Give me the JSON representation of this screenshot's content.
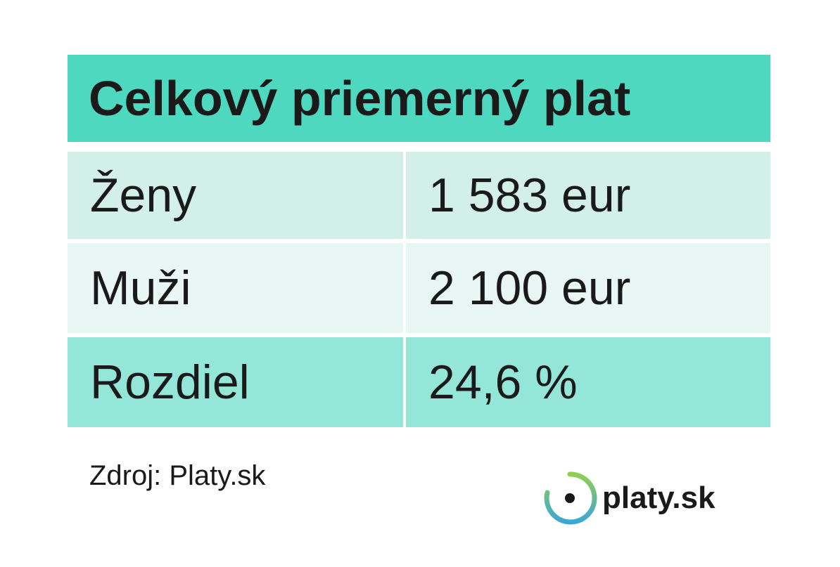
{
  "header": {
    "title": "Celkový priemerný plat"
  },
  "table": {
    "rows": [
      [
        "Ženy",
        "1 583 eur"
      ],
      [
        "Muži",
        "2 100 eur"
      ],
      [
        "Rozdiel",
        "24,6 %"
      ]
    ]
  },
  "footer": {
    "source": "Zdroj: Platy.sk",
    "logo": "platy.sk"
  }
}
